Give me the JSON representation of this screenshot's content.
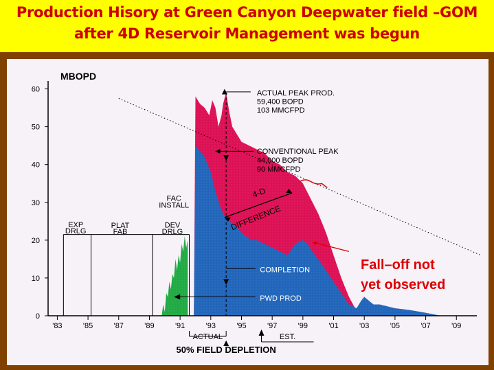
{
  "header": {
    "title_line1": "Production Hisory at Green Canyon Deepwater field –GOM",
    "title_line2": "after 4D Reservoir Management was begun"
  },
  "colors": {
    "background": "#ffff00",
    "frame": "#804000",
    "plot_bg": "#f7f1f8",
    "red_area": "#dd1155",
    "blue_area": "#2266bb",
    "green_area": "#22aa44",
    "title_text": "#cc0000",
    "callout_text": "#dd0000"
  },
  "annotations": {
    "actual_peak": "ACTUAL PEAK PROD.",
    "actual_peak_bopd": "59,400 BOPD",
    "actual_peak_mmcfpd": "103 MMCFPD",
    "conventional_peak": "CONVENTIONAL PEAK",
    "conventional_bopd": "44,000 BOPD",
    "conventional_mmcfpd": "90 MMCFPD",
    "four_d": "4-D",
    "difference": "DIFFERENCE",
    "fac_install_1": "FAC",
    "fac_install_2": "INSTALL",
    "exp_1": "EXP",
    "exp_2": "DRLG",
    "plat_1": "PLAT",
    "plat_2": "FAB",
    "dev_1": "DEV",
    "dev_2": "DRLG",
    "completion": "COMPLETION",
    "pwd_prod": "PWD PROD",
    "actual": "ACTUAL",
    "est": "EST.",
    "depletion": "50% FIELD DEPLETION",
    "falloff_1": "Fall–off not",
    "falloff_2": "yet observed"
  },
  "chart_data": {
    "type": "area",
    "title": "",
    "ylabel": "MBOPD",
    "xlabel": "",
    "x_tick_labels": [
      "'83",
      "'85",
      "'87",
      "'89",
      "'91",
      "'93",
      "'95",
      "'97",
      "'99",
      "'01",
      "'03",
      "'05",
      "'07",
      "'09"
    ],
    "x_ticks": [
      1983,
      1985,
      1987,
      1989,
      1991,
      1993,
      1995,
      1997,
      1999,
      2001,
      2003,
      2005,
      2007,
      2009
    ],
    "y_ticks": [
      0,
      10,
      20,
      30,
      40,
      50,
      60
    ],
    "xlim": [
      1982.4,
      2010.6
    ],
    "ylim": [
      0,
      61
    ],
    "grid": false,
    "legend": "none",
    "series": [
      {
        "kind": "green",
        "x": [
          1989.8,
          1989.9,
          1990.0,
          1990.1,
          1990.2,
          1990.3,
          1990.4,
          1990.5,
          1990.6,
          1990.7,
          1990.8,
          1990.9,
          1991.0,
          1991.1,
          1991.2,
          1991.3,
          1991.4,
          1991.5
        ],
        "y": [
          0,
          3,
          1,
          6,
          5,
          9,
          7,
          11,
          10,
          15,
          12,
          16,
          14,
          19,
          17,
          21,
          18,
          20
        ]
      },
      {
        "kind": "blue",
        "x": [
          1991.9,
          1992.0,
          1992.2,
          1992.4,
          1992.6,
          1992.8,
          1993.0,
          1993.3,
          1993.6,
          1993.8,
          1994.0,
          1994.2,
          1994.5,
          1995.0,
          1995.3,
          1995.6,
          1996.0,
          1996.5,
          1997.0,
          1997.5,
          1998.0,
          1998.5,
          1999.0,
          1999.3,
          1999.6,
          2000.0,
          2000.5,
          2001.0,
          2001.5,
          2002.0,
          2002.5,
          2002.8,
          2003.0,
          2003.3,
          2003.6,
          2004.0,
          2005.0,
          2006.0,
          2007.0,
          2008.0
        ],
        "y": [
          0,
          45,
          44,
          43,
          42,
          40,
          38,
          33,
          29,
          27,
          26,
          25,
          24,
          22,
          21,
          20,
          20,
          19,
          18,
          17,
          16,
          19,
          20,
          19,
          17,
          15,
          12,
          9,
          6,
          3,
          2,
          4,
          5,
          4,
          3,
          3,
          2,
          1.5,
          0.8,
          0
        ]
      },
      {
        "kind": "red",
        "x": [
          1991.9,
          1992.0,
          1992.3,
          1992.6,
          1992.9,
          1993.1,
          1993.3,
          1993.5,
          1993.7,
          1993.8,
          1994.0,
          1994.2,
          1994.4,
          1994.7,
          1995.0,
          1995.5,
          1996.0,
          1996.5,
          1997.0,
          1997.5,
          1998.0,
          1998.5,
          1999.0,
          1999.5,
          2000.0,
          2000.5,
          2001.0,
          2001.5,
          2002.0,
          2002.4
        ],
        "y": [
          0,
          58,
          56,
          55,
          53,
          57,
          55,
          50,
          53,
          56,
          59,
          54,
          50,
          48,
          46,
          45,
          44,
          43,
          41,
          40,
          38,
          37,
          35,
          31,
          27,
          22,
          16,
          10,
          5,
          2
        ]
      }
    ],
    "trend_line": {
      "x": [
        1987,
        2010.6
      ],
      "y": [
        57.5,
        16
      ]
    }
  }
}
